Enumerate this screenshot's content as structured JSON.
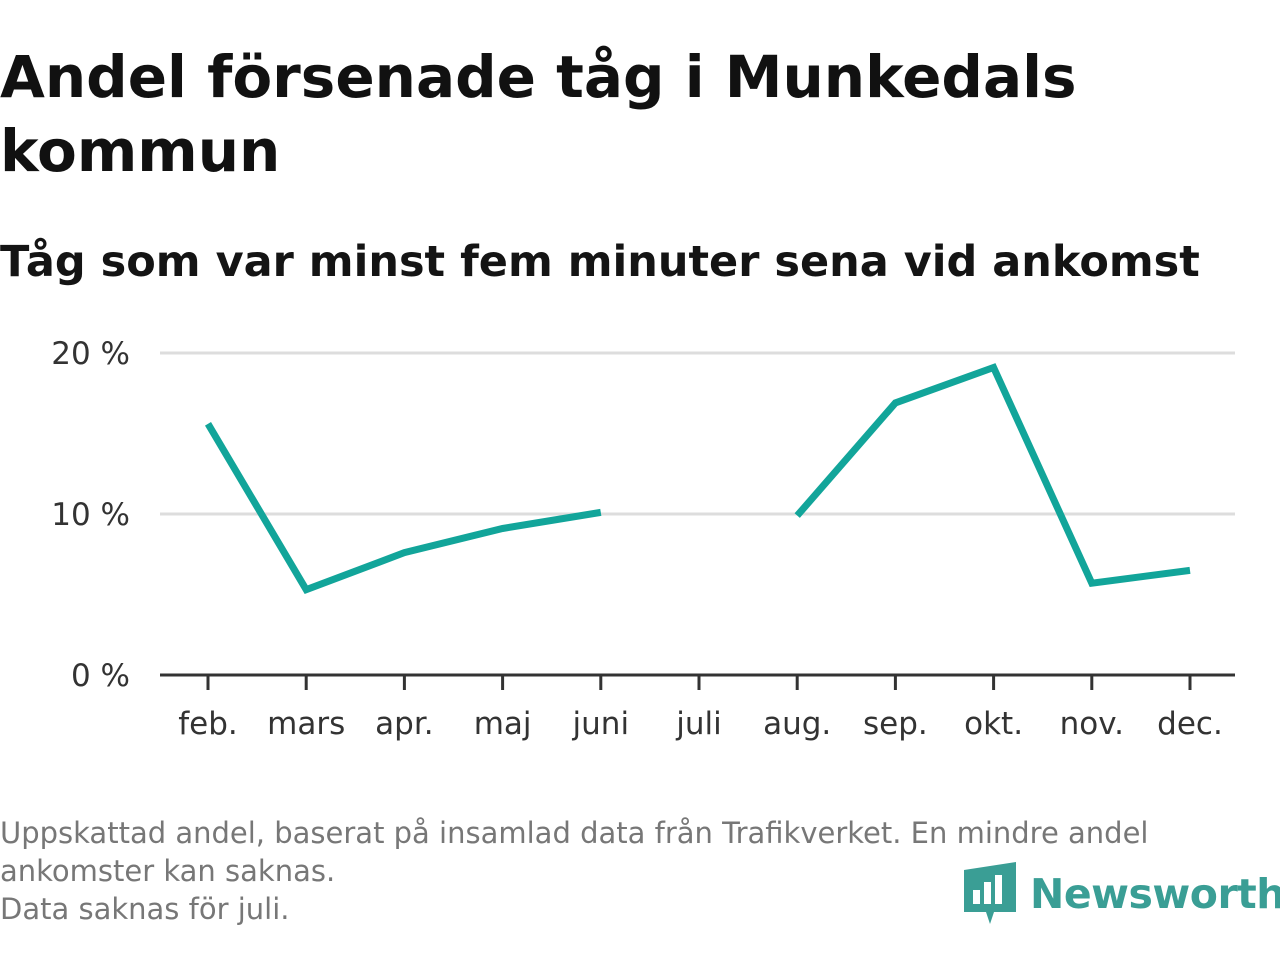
{
  "title": "Andel försenade tåg i Munkedals kommun",
  "subtitle": "Tåg som var minst fem minuter sena vid ankomst",
  "caption": {
    "line1": "Uppskattad andel, baserat på insamlad data från Trafikverket. En mindre andel ankomster kan saknas.",
    "line2": "Data saknas för juli."
  },
  "brand": {
    "name": "Newsworthy",
    "icon": "newsworthy-logo-icon",
    "color": "#3a9e95"
  },
  "colors": {
    "line": "#12a59a",
    "grid": "#dddddd",
    "axis": "#333333"
  },
  "chart_data": {
    "type": "line",
    "title": "Andel försenade tåg i Munkedals kommun",
    "subtitle": "Tåg som var minst fem minuter sena vid ankomst",
    "xlabel": "",
    "ylabel": "",
    "categories": [
      "feb.",
      "mars",
      "apr.",
      "maj",
      "juni",
      "juli",
      "aug.",
      "sep.",
      "okt.",
      "nov.",
      "dec."
    ],
    "series": [
      {
        "values": [
          15.6,
          5.3,
          7.6,
          9.1,
          10.1,
          null,
          9.9,
          16.9,
          19.1,
          5.7,
          6.5
        ]
      }
    ],
    "ylim": [
      0,
      20
    ],
    "yticks": [
      0,
      10,
      20
    ],
    "ytick_labels": [
      "0 %",
      "10 %",
      "20 %"
    ],
    "grid": true,
    "legend": "none"
  }
}
